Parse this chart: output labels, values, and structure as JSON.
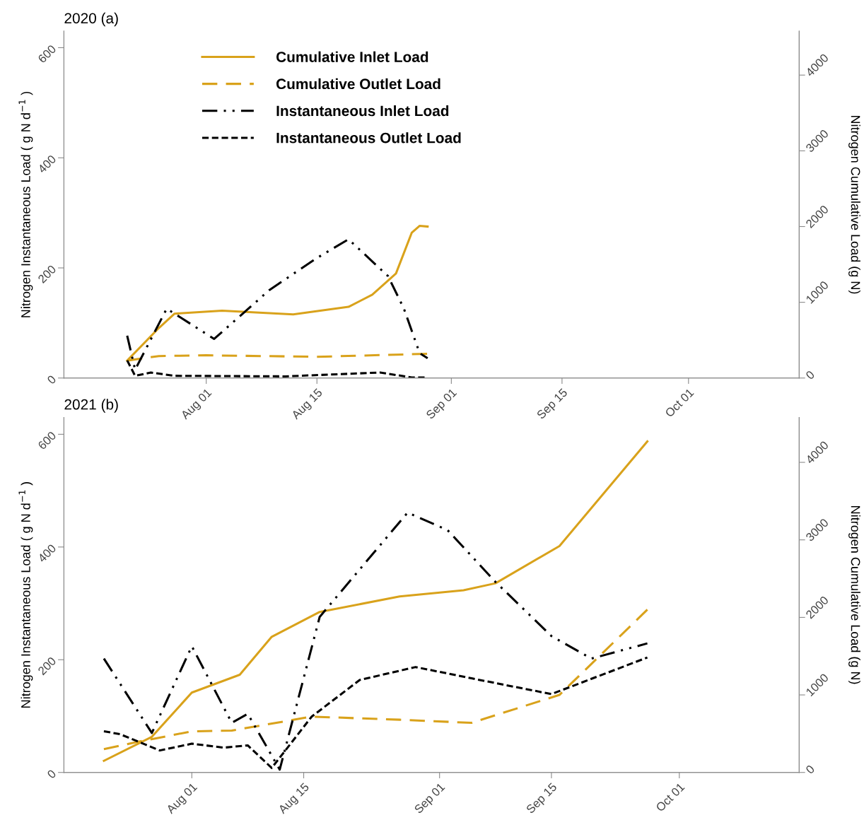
{
  "chart_data": [
    {
      "type": "line",
      "title": "2020 (a)",
      "ylabel": "Nitrogen Instantaneous Load ( g N d$^{−1}$ )",
      "y2label": "Nitrogen Cumulative Load (g N)",
      "xlim": [
        "2020-07-14",
        "2020-10-15"
      ],
      "xticks": [
        {
          "value": "2020-08-01",
          "label": "Aug 01"
        },
        {
          "value": "2020-08-15",
          "label": "Aug 15"
        },
        {
          "value": "2020-09-01",
          "label": "Sep 01"
        },
        {
          "value": "2020-09-15",
          "label": "Sep 15"
        },
        {
          "value": "2020-10-01",
          "label": "Oct 01"
        }
      ],
      "ylim": [
        0,
        630
      ],
      "yticks": [
        0,
        200,
        400,
        600
      ],
      "y2lim": [
        0,
        4580
      ],
      "y2ticks": [
        0,
        1000,
        2000,
        3000,
        4000
      ],
      "grid": false,
      "legend": "top left",
      "marker": "none",
      "series": [
        {
          "name": "Cumulative Inlet Load",
          "color": "#d9a21b",
          "axis": "y2",
          "line_style": "solid",
          "x": [
            "2020-07-22",
            "2020-07-26",
            "2020-07-28",
            "2020-08-03",
            "2020-08-12",
            "2020-08-19",
            "2020-08-22",
            "2020-08-25",
            "2020-08-27",
            "2020-08-28",
            "2020-08-29"
          ],
          "values": [
            230,
            660,
            850,
            890,
            840,
            940,
            1100,
            1380,
            1920,
            2010,
            2000
          ]
        },
        {
          "name": "Cumulative Outlet Load",
          "color": "#d9a21b",
          "axis": "y2",
          "line_style": "longdashed",
          "x": [
            "2020-07-22",
            "2020-07-26",
            "2020-08-01",
            "2020-08-15",
            "2020-08-29"
          ],
          "values": [
            230,
            290,
            300,
            280,
            320
          ]
        },
        {
          "name": "Instantaneous Inlet Load",
          "color": "#000000",
          "axis": "y",
          "line_style": "dashdotdotted",
          "x": [
            "2020-07-22",
            "2020-07-23",
            "2020-07-27",
            "2020-08-02",
            "2020-08-09",
            "2020-08-15",
            "2020-08-19",
            "2020-08-24",
            "2020-08-26",
            "2020-08-28",
            "2020-08-29"
          ],
          "values": [
            77,
            15,
            126,
            71,
            160,
            218,
            252,
            185,
            126,
            45,
            36
          ]
        },
        {
          "name": "Instantaneous Outlet Load",
          "color": "#000000",
          "axis": "y",
          "line_style": "dashed",
          "x": [
            "2020-07-22",
            "2020-07-23",
            "2020-07-25",
            "2020-07-28",
            "2020-08-11",
            "2020-08-23",
            "2020-08-27",
            "2020-08-29"
          ],
          "values": [
            32,
            4,
            10,
            4,
            3,
            10,
            1,
            1
          ]
        }
      ]
    },
    {
      "type": "line",
      "title": "2021 (b)",
      "ylabel": "Nitrogen Instantaneous Load ( g N d$^{−1}$ )",
      "y2label": "Nitrogen Cumulative Load (g N)",
      "xlim": [
        "2021-07-16",
        "2021-10-16"
      ],
      "xticks": [
        {
          "value": "2021-08-01",
          "label": "Aug 01"
        },
        {
          "value": "2021-08-15",
          "label": "Aug 15"
        },
        {
          "value": "2021-09-01",
          "label": "Sep 01"
        },
        {
          "value": "2021-09-15",
          "label": "Sep 15"
        },
        {
          "value": "2021-10-01",
          "label": "Oct 01"
        }
      ],
      "ylim": [
        0,
        630
      ],
      "yticks": [
        0,
        200,
        400,
        600
      ],
      "y2lim": [
        0,
        4580
      ],
      "y2ticks": [
        0,
        1000,
        2000,
        3000,
        4000
      ],
      "grid": false,
      "marker": "none",
      "series": [
        {
          "color": "#d9a21b",
          "axis": "y2",
          "line_style": "solid",
          "x": [
            "2021-07-21",
            "2021-07-27",
            "2021-08-01",
            "2021-08-07",
            "2021-08-11",
            "2021-08-17",
            "2021-08-27",
            "2021-09-04",
            "2021-09-08",
            "2021-09-16",
            "2021-09-27"
          ],
          "values": [
            150,
            460,
            1030,
            1260,
            1750,
            2070,
            2270,
            2350,
            2440,
            2920,
            4270
          ]
        },
        {
          "color": "#d9a21b",
          "axis": "y2",
          "line_style": "longdashed",
          "x": [
            "2021-07-21",
            "2021-07-25",
            "2021-08-01",
            "2021-08-06",
            "2021-08-16",
            "2021-08-27",
            "2021-09-05",
            "2021-09-16",
            "2021-09-27"
          ],
          "values": [
            300,
            390,
            530,
            540,
            720,
            680,
            640,
            1000,
            2100
          ]
        },
        {
          "color": "#000000",
          "axis": "y",
          "line_style": "dashdotdotted",
          "x": [
            "2021-07-21",
            "2021-07-27",
            "2021-08-01",
            "2021-08-06",
            "2021-08-08",
            "2021-08-12",
            "2021-08-17",
            "2021-08-28",
            "2021-09-02",
            "2021-09-08",
            "2021-09-15",
            "2021-09-20",
            "2021-09-27"
          ],
          "values": [
            202,
            70,
            224,
            88,
            104,
            5,
            276,
            461,
            430,
            338,
            242,
            202,
            229
          ]
        },
        {
          "color": "#000000",
          "axis": "y",
          "line_style": "dashed",
          "x": [
            "2021-07-21",
            "2021-07-23",
            "2021-07-28",
            "2021-08-01",
            "2021-08-05",
            "2021-08-08",
            "2021-08-11",
            "2021-08-16",
            "2021-08-22",
            "2021-08-29",
            "2021-09-05",
            "2021-09-15",
            "2021-09-27"
          ],
          "values": [
            73,
            68,
            39,
            51,
            44,
            48,
            8,
            99,
            164,
            187,
            167,
            139,
            204
          ]
        }
      ]
    }
  ]
}
